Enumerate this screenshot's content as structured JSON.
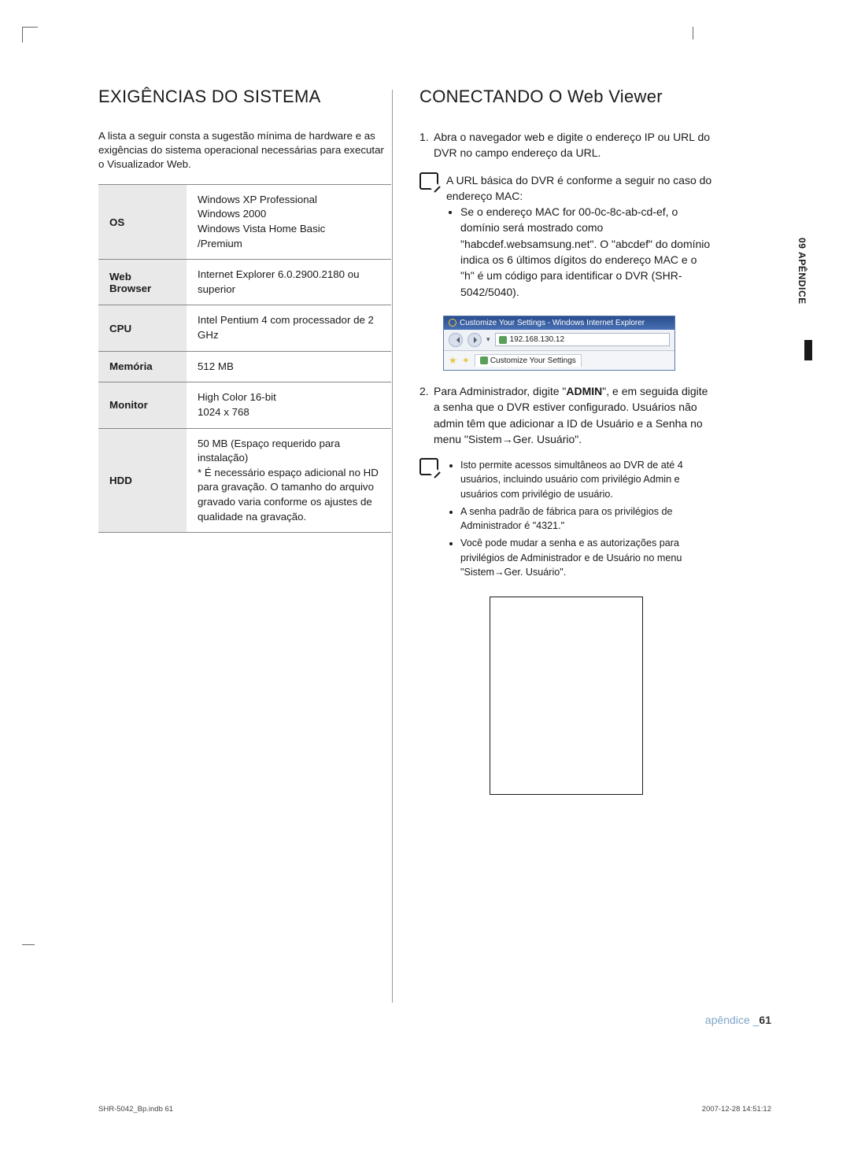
{
  "left": {
    "heading": "EXIGÊNCIAS DO SISTEMA",
    "intro": "A lista a seguir consta a sugestão mínima de hardware e as exigências do sistema operacional necessárias para executar o Visualizador Web.",
    "rows": [
      {
        "label": "OS",
        "value": "Windows XP Professional\nWindows 2000\nWindows Vista Home Basic\n/Premium"
      },
      {
        "label": "Web Browser",
        "value": "Internet Explorer  6.0.2900.2180 ou superior"
      },
      {
        "label": "CPU",
        "value": "Intel Pentium 4 com processador de 2 GHz"
      },
      {
        "label": "Memória",
        "value": "512 MB"
      },
      {
        "label": "Monitor",
        "value": "High Color 16-bit\n1024 x 768"
      },
      {
        "label": "HDD",
        "value": "50 MB (Espaço requerido para instalação)\n* É necessário espaço adicional no HD para gravação. O tamanho do arquivo gravado varia conforme os ajustes de qualidade na gravação."
      }
    ]
  },
  "right": {
    "heading": "CONECTANDO O Web Viewer",
    "step1_num": "1.",
    "step1": "Abra o navegador web e digite o endereço IP ou URL do DVR no campo endereço da URL.",
    "note1_lead": "A URL básica do DVR é conforme a seguir no caso do endereço MAC:",
    "note1_bullet": "Se o endereço MAC for 00-0c-8c-ab-cd-ef, o domínio será mostrado como \"habcdef.websamsung.net\". O \"abcdef\" do domínio indica os 6 últimos dígitos do endereço MAC e o \"h\" é um código para identificar o DVR (SHR-5042/5040).",
    "browser": {
      "title": "Customize Your Settings - Windows Internet Explorer",
      "address": "192.168.130.12",
      "tab": "Customize Your Settings"
    },
    "step2_num": "2.",
    "step2_pre": "Para Administrador, digite \"",
    "step2_bold": "ADMIN",
    "step2_post": "\", e em seguida digite a senha que o DVR estiver configurado. Usuários não admin têm que adicionar a ID de Usuário e a Senha no menu \"Sistem→Ger. Usuário\".",
    "note2_bullets": [
      "Isto permite acessos simultâneos ao DVR de até 4 usuários, incluindo usuário com privilégio Admin e usuários com privilégio de usuário.",
      "A senha padrão de fábrica para os privilégios de Administrador é \"4321.\"",
      "Você pode mudar a senha e as autorizações para privilégios de Administrador e de Usuário no menu \"Sistem→Ger. Usuário\"."
    ]
  },
  "side_tab": "09 APÊNDICE",
  "footer_label": "apêndice _",
  "footer_page": "61",
  "print_left": "SHR-5042_Bp.indb   61",
  "print_right": "2007-12-28   14:51:12"
}
